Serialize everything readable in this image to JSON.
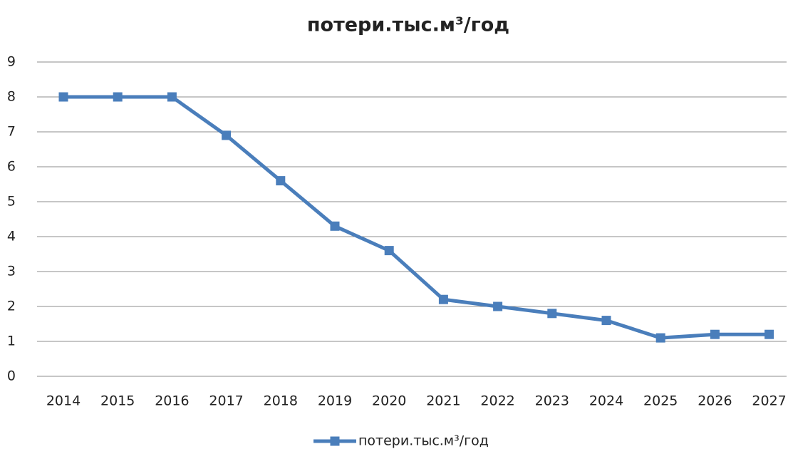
{
  "chart_data": {
    "type": "line",
    "title": "потери.тыс.м³/год",
    "categories": [
      "2014",
      "2015",
      "2016",
      "2017",
      "2018",
      "2019",
      "2020",
      "2021",
      "2022",
      "2023",
      "2024",
      "2025",
      "2026",
      "2027"
    ],
    "series": [
      {
        "name": "потери.тыс.м³/год",
        "color": "#4a7ebb",
        "values": [
          8,
          8,
          8,
          6.9,
          5.6,
          4.3,
          3.6,
          2.2,
          2.0,
          1.8,
          1.6,
          1.1,
          1.2,
          1.2
        ]
      }
    ],
    "ylim": [
      0,
      9
    ],
    "yticks": [
      0,
      1,
      2,
      3,
      4,
      5,
      6,
      7,
      8,
      9
    ],
    "grid": true,
    "legend": "bottom"
  }
}
